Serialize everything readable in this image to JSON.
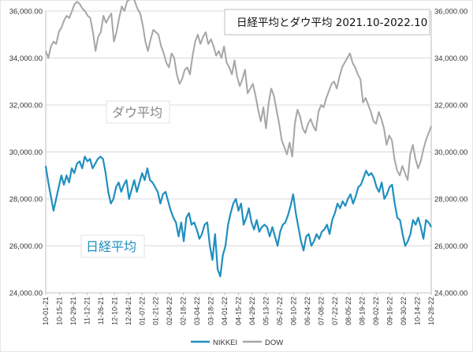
{
  "chart_data": {
    "type": "line",
    "title": "日経平均とダウ平均 2021.10-2022.10",
    "annotations": {
      "dow_label": "ダウ平均",
      "nikkei_label": "日経平均"
    },
    "y_left": {
      "min": 24000,
      "max": 36000,
      "ticks": [
        "24,000.00",
        "26,000.00",
        "28,000.00",
        "30,000.00",
        "32,000.00",
        "34,000.00",
        "36,000.00"
      ]
    },
    "y_right": {
      "min": 24000,
      "max": 36000,
      "ticks": [
        "24,000.00",
        "26,000.00",
        "28,000.00",
        "30,000.00",
        "32,000.00",
        "34,000.00",
        "36,000.00"
      ]
    },
    "x_ticks": [
      "10-01-21",
      "10-15-21",
      "10-29-21",
      "11-12-21",
      "11-26-21",
      "12-10-21",
      "12-24-21",
      "01-07-22",
      "01-21-22",
      "02-04-22",
      "02-18-22",
      "03-04-22",
      "03-18-22",
      "04-01-22",
      "04-15-22",
      "04-29-22",
      "05-13-22",
      "05-27-22",
      "06-10-22",
      "06-24-22",
      "07-08-22",
      "07-22-22",
      "08-05-22",
      "08-19-22",
      "09-02-22",
      "09-16-22",
      "09-30-22",
      "10-14-22",
      "10-28-22"
    ],
    "legend": [
      {
        "name": "NIKKEI",
        "color": "#1f8fbf"
      },
      {
        "name": "DOW",
        "color": "#a6a6a6"
      }
    ],
    "series": [
      {
        "name": "NIKKEI",
        "color": "#1f8fbf",
        "values": [
          29400,
          28700,
          28100,
          27500,
          28000,
          28500,
          29000,
          28600,
          29000,
          28700,
          29300,
          29100,
          29500,
          29600,
          29300,
          29800,
          29600,
          29700,
          29300,
          29500,
          29700,
          29800,
          29700,
          29100,
          28300,
          27800,
          28000,
          28500,
          28700,
          28300,
          28600,
          28800,
          28000,
          28400,
          28800,
          28300,
          28700,
          29100,
          28800,
          29300,
          28800,
          28700,
          28500,
          28300,
          27800,
          28200,
          28300,
          27900,
          27500,
          27200,
          27000,
          26400,
          27000,
          26200,
          27200,
          27400,
          26900,
          27000,
          26700,
          26300,
          26500,
          26900,
          27000,
          26000,
          25400,
          26500,
          25000,
          24700,
          25600,
          26000,
          26900,
          27400,
          27800,
          28000,
          27500,
          27800,
          26900,
          27200,
          27600,
          27000,
          26700,
          27100,
          26600,
          26800,
          26900,
          26800,
          26400,
          26800,
          26400,
          26000,
          26600,
          26900,
          27000,
          27300,
          27700,
          28200,
          27400,
          26800,
          26200,
          25800,
          26400,
          26500,
          26000,
          26200,
          26500,
          26300,
          26600,
          26700,
          26900,
          26500,
          27100,
          27400,
          27800,
          27600,
          27900,
          27700,
          28000,
          28200,
          27800,
          28100,
          28500,
          28600,
          28900,
          29200,
          29000,
          29100,
          28900,
          28500,
          28300,
          28700,
          28000,
          28200,
          28500,
          28600,
          27800,
          27200,
          27100,
          26500,
          26000,
          26200,
          26500,
          27100,
          26900,
          27200,
          26800,
          26300,
          27100,
          27000,
          26800
        ]
      },
      {
        "name": "DOW",
        "color": "#a6a6a6",
        "values": [
          34300,
          34000,
          34500,
          34700,
          34600,
          35100,
          35300,
          35600,
          35800,
          35700,
          36000,
          36300,
          36400,
          36300,
          36100,
          36000,
          35800,
          35700,
          35100,
          34300,
          34900,
          35100,
          35800,
          35500,
          35700,
          35900,
          34700,
          35100,
          35700,
          36200,
          36000,
          36400,
          36500,
          36700,
          36400,
          36100,
          35900,
          35400,
          34700,
          34300,
          34800,
          35200,
          35100,
          35000,
          34500,
          34200,
          33800,
          33600,
          34200,
          34000,
          33300,
          32900,
          33100,
          33500,
          33600,
          33300,
          34100,
          34700,
          35000,
          34600,
          34900,
          35100,
          34600,
          34800,
          34500,
          34100,
          34300,
          34000,
          34500,
          33800,
          33600,
          33300,
          33900,
          33200,
          32800,
          33100,
          33500,
          32500,
          32700,
          32900,
          32400,
          31800,
          31300,
          31900,
          31000,
          32100,
          32700,
          32400,
          31800,
          31200,
          30500,
          30200,
          29900,
          30400,
          29800,
          31200,
          31800,
          31500,
          31000,
          30800,
          31200,
          31400,
          31100,
          30900,
          31700,
          32000,
          31900,
          32300,
          32600,
          32900,
          33000,
          32700,
          33200,
          33600,
          33800,
          34000,
          34200,
          33800,
          33600,
          33300,
          33100,
          32100,
          32300,
          32000,
          31700,
          31300,
          31200,
          31700,
          31400,
          31000,
          30300,
          30700,
          30500,
          29700,
          29200,
          29000,
          29400,
          29100,
          28800,
          29900,
          30300,
          29700,
          29300,
          29600,
          30100,
          30500,
          30800,
          31100
        ]
      }
    ]
  }
}
